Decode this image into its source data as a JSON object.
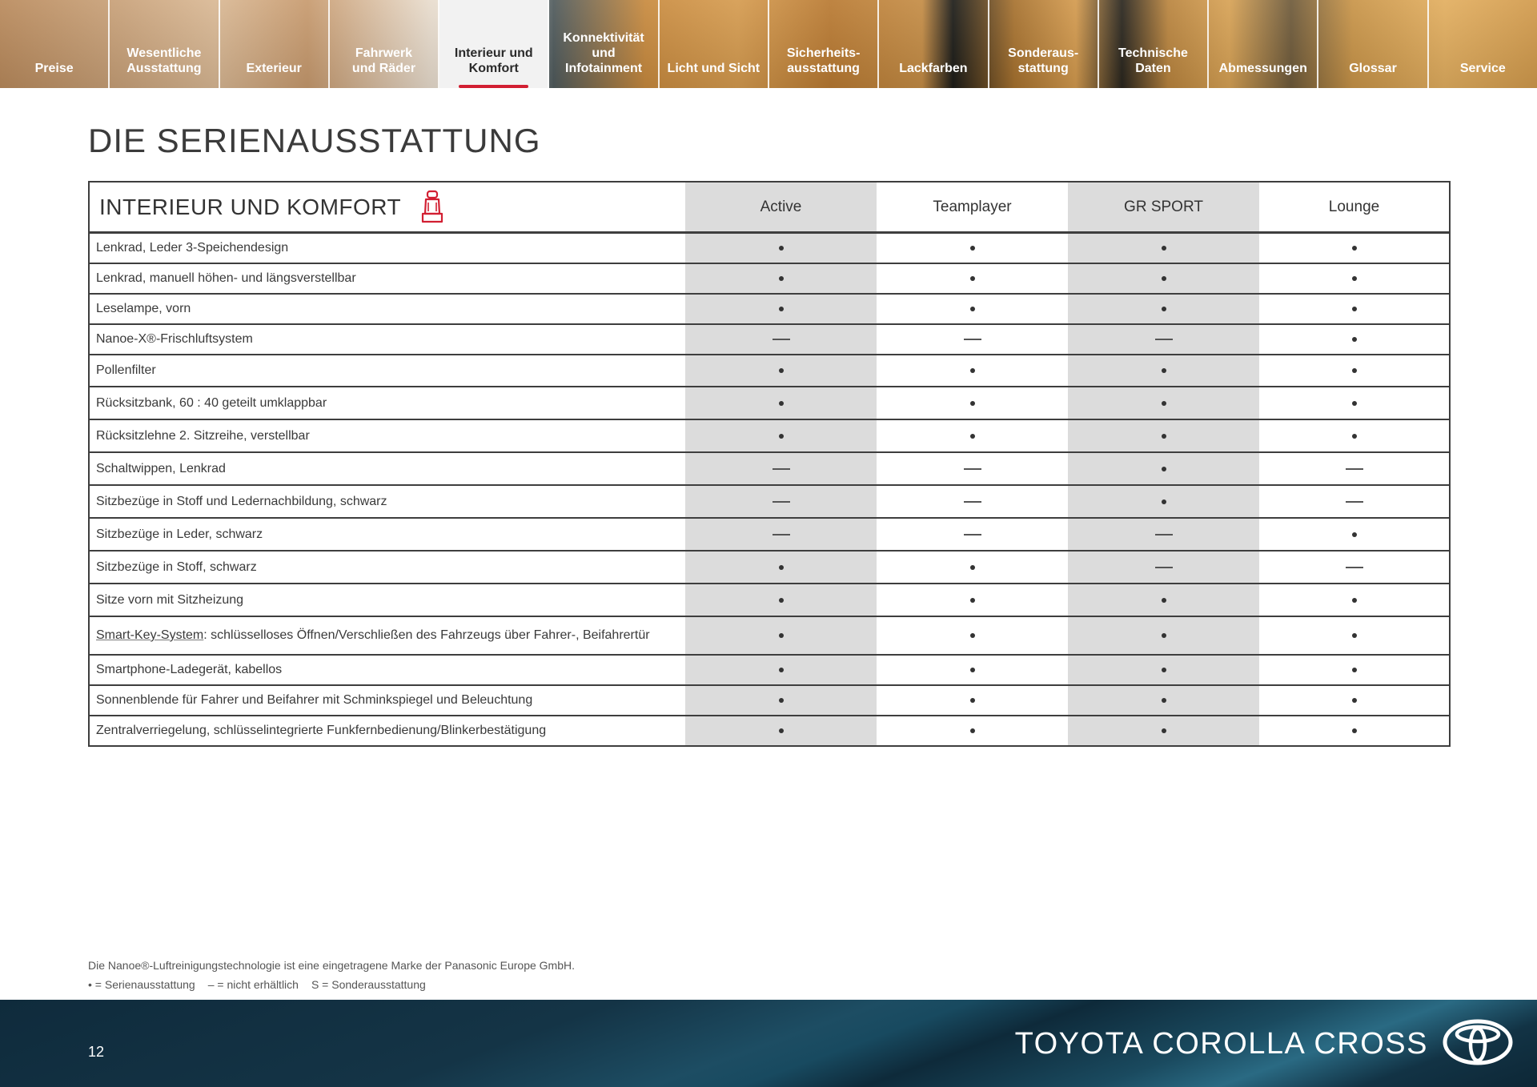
{
  "nav": {
    "tabs": [
      {
        "label": "Preise",
        "active": false
      },
      {
        "label": "Wesentliche\nAusstattung",
        "active": false
      },
      {
        "label": "Exterieur",
        "active": false
      },
      {
        "label": "Fahrwerk\nund Räder",
        "active": false
      },
      {
        "label": "Interieur und\nKomfort",
        "active": true
      },
      {
        "label": "Konnektivität\nund\nInfotainment",
        "active": false
      },
      {
        "label": "Licht und Sicht",
        "active": false
      },
      {
        "label": "Sicherheits-\nausstattung",
        "active": false
      },
      {
        "label": "Lackfarben",
        "active": false
      },
      {
        "label": "Sonderaus-\nstattung",
        "active": false
      },
      {
        "label": "Technische\nDaten",
        "active": false
      },
      {
        "label": "Abmessungen",
        "active": false
      },
      {
        "label": "Glossar",
        "active": false
      },
      {
        "label": "Service",
        "active": false
      }
    ]
  },
  "page_title": "DIE SERIENAUSSTATTUNG",
  "table": {
    "section_title": "INTERIEUR UND KOMFORT",
    "section_icon": "seat-icon",
    "columns": [
      "Active",
      "Teamplayer",
      "GR SPORT",
      "Lounge"
    ],
    "rows": [
      {
        "feature": "Lenkrad, Leder 3-Speichendesign",
        "values": [
          "•",
          "•",
          "•",
          "•"
        ]
      },
      {
        "feature": "Lenkrad, manuell höhen- und längsverstellbar",
        "values": [
          "•",
          "•",
          "•",
          "•"
        ]
      },
      {
        "feature": "Leselampe, vorn",
        "values": [
          "•",
          "•",
          "•",
          "•"
        ]
      },
      {
        "feature": "Nanoe-X®-Frischluftsystem",
        "values": [
          "—",
          "—",
          "—",
          "•"
        ]
      },
      {
        "feature": "Pollenfilter",
        "values": [
          "•",
          "•",
          "•",
          "•"
        ]
      },
      {
        "feature": "Rücksitzbank, 60 : 40 geteilt umklappbar",
        "values": [
          "•",
          "•",
          "•",
          "•"
        ]
      },
      {
        "feature": "Rücksitzlehne 2. Sitzreihe, verstellbar",
        "values": [
          "•",
          "•",
          "•",
          "•"
        ]
      },
      {
        "feature": "Schaltwippen, Lenkrad",
        "values": [
          "—",
          "—",
          "•",
          "—"
        ]
      },
      {
        "feature": "Sitzbezüge in Stoff und Ledernachbildung, schwarz",
        "values": [
          "—",
          "—",
          "•",
          "—"
        ]
      },
      {
        "feature": "Sitzbezüge in Leder, schwarz",
        "values": [
          "—",
          "—",
          "—",
          "•"
        ]
      },
      {
        "feature": "Sitzbezüge in Stoff, schwarz",
        "values": [
          "•",
          "•",
          "—",
          "—"
        ]
      },
      {
        "feature": "Sitze vorn mit Sitzheizung",
        "values": [
          "•",
          "•",
          "•",
          "•"
        ]
      },
      {
        "feature_link": "Smart-Key-System",
        "feature_rest": ": schlüsselloses Öffnen/Verschließen des Fahrzeugs über Fahrer-, Beifahrertür",
        "values": [
          "•",
          "•",
          "•",
          "•"
        ]
      },
      {
        "feature": "Smartphone-Ladegerät, kabellos",
        "values": [
          "•",
          "•",
          "•",
          "•"
        ]
      },
      {
        "feature": "Sonnenblende für Fahrer und Beifahrer mit Schminkspiegel und Beleuchtung",
        "values": [
          "•",
          "•",
          "•",
          "•"
        ]
      },
      {
        "feature": "Zentralverriegelung, schlüsselintegrierte Funkfernbedienung/Blinkerbestätigung",
        "values": [
          "•",
          "•",
          "•",
          "•"
        ]
      }
    ]
  },
  "footnotes": {
    "trademark": "Die Nanoe®-Luftreinigungstechnologie ist eine eingetragene Marke der Panasonic Europe GmbH.",
    "legend": [
      "• = Serienausstattung",
      "– = nicht erhältlich",
      "S = Sonderausstattung"
    ]
  },
  "footer": {
    "page_number": "12",
    "brand_name": "TOYOTA COROLLA CROSS",
    "logo_icon": "toyota-logo-icon"
  },
  "colors": {
    "accent_red": "#d21f32",
    "shaded_column": "#dcdcdc",
    "footer_dark": "#0f2b3c"
  }
}
